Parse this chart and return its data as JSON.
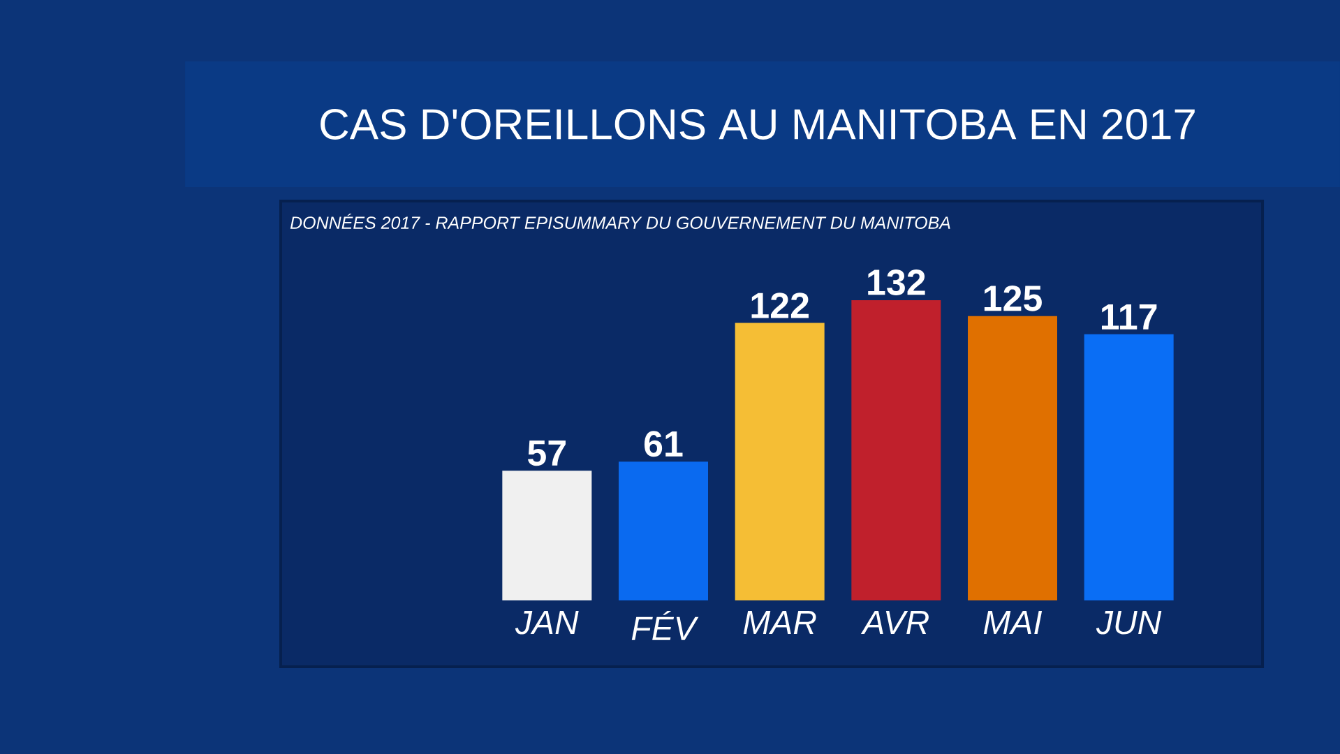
{
  "chart_data": {
    "type": "bar",
    "title": "CAS D'OREILLONS AU MANITOBA EN 2017",
    "subtitle": "DONNÉES 2017 -  RAPPORT EPISUMMARY DU GOUVERNEMENT DU MANITOBA",
    "categories": [
      "JAN",
      "FÉV",
      "MAR",
      "AVR",
      "MAI",
      "JUN"
    ],
    "values": [
      57,
      61,
      122,
      132,
      125,
      117
    ],
    "colors": [
      "#f0f0f0",
      "#0a6af0",
      "#f5be35",
      "#c0202c",
      "#e07000",
      "#0a6ef5"
    ],
    "data_labels": true
  }
}
